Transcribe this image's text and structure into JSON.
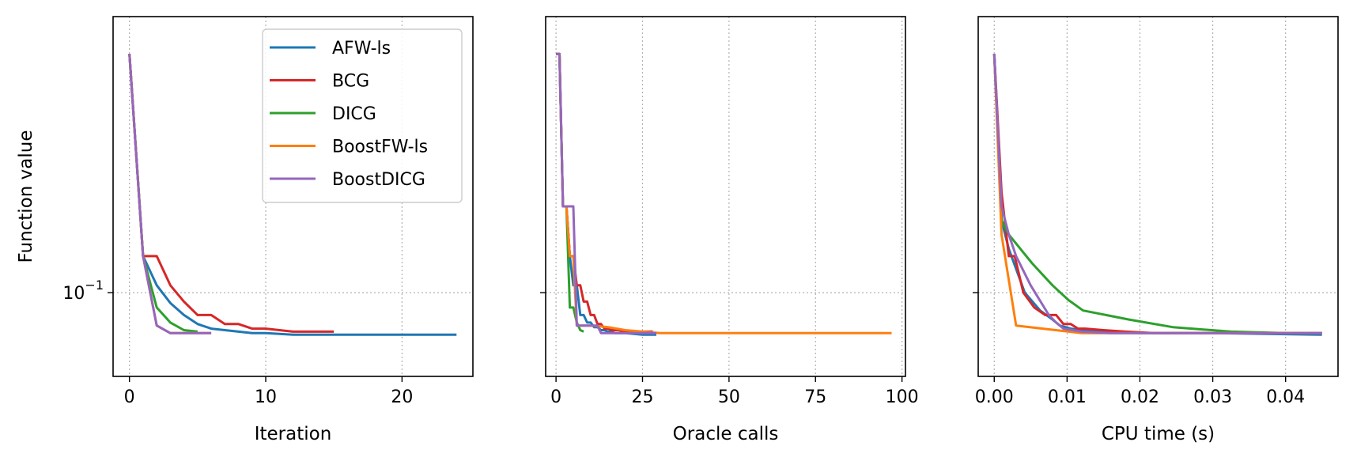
{
  "chart_data": [
    {
      "type": "line",
      "xlabel": "Iteration",
      "ylabel": "Function value",
      "y_scale": "log",
      "xlim": [
        -1.2,
        25.2
      ],
      "ylim": [
        0.0945,
        0.1205
      ],
      "xticks": [
        0,
        10,
        20
      ],
      "xtick_labels": [
        "0",
        "10",
        "20"
      ],
      "yticks": [
        0.1
      ],
      "ytick_labels": [
        "10",
        "−1"
      ],
      "grid": true,
      "legend": "top-right",
      "series": [
        {
          "name": "AFW-ls",
          "color": "#1f77b4",
          "x": [
            0,
            1,
            2,
            3,
            4,
            5,
            6,
            7,
            8,
            9,
            10,
            12,
            15,
            24
          ],
          "y": [
            0.1175,
            0.1025,
            0.1005,
            0.0993,
            0.0985,
            0.0979,
            0.0976,
            0.0975,
            0.0974,
            0.0973,
            0.0973,
            0.0972,
            0.0972,
            0.0972
          ]
        },
        {
          "name": "BCG",
          "color": "#d62728",
          "x": [
            0,
            1,
            2,
            3,
            4,
            5,
            6,
            7,
            8,
            9,
            10,
            11,
            12,
            15
          ],
          "y": [
            0.1175,
            0.1025,
            0.1025,
            0.1005,
            0.0994,
            0.0985,
            0.0985,
            0.0979,
            0.0979,
            0.0976,
            0.0976,
            0.0975,
            0.0974,
            0.0974
          ]
        },
        {
          "name": "DICG",
          "color": "#2ca02c",
          "x": [
            0,
            1,
            2,
            3,
            4,
            5
          ],
          "y": [
            0.1175,
            0.1025,
            0.099,
            0.098,
            0.0975,
            0.0974
          ]
        },
        {
          "name": "BoostFW-ls",
          "color": "#ff7f0e",
          "x": [
            0,
            1,
            2,
            3,
            4,
            5,
            6
          ],
          "y": [
            0.1175,
            0.1025,
            0.0978,
            0.0973,
            0.0973,
            0.0973,
            0.0973
          ]
        },
        {
          "name": "BoostDICG",
          "color": "#9467bd",
          "x": [
            0,
            1,
            2,
            3,
            4,
            5,
            6
          ],
          "y": [
            0.1175,
            0.1025,
            0.0978,
            0.0973,
            0.0973,
            0.0973,
            0.0973
          ]
        }
      ]
    },
    {
      "type": "line",
      "xlabel": "Oracle calls",
      "y_scale": "log",
      "xlim": [
        -3,
        101
      ],
      "ylim": [
        0.0945,
        0.1205
      ],
      "xticks": [
        0,
        25,
        50,
        75,
        100
      ],
      "xtick_labels": [
        "0",
        "25",
        "50",
        "75",
        "100"
      ],
      "grid": true,
      "series": [
        {
          "name": "AFW-ls",
          "color": "#1f77b4",
          "x": [
            0,
            1,
            2,
            3,
            4,
            5,
            6,
            7,
            8,
            9,
            10,
            11,
            12,
            13,
            14,
            15,
            16,
            17,
            20,
            25,
            29
          ],
          "y": [
            0.1175,
            0.1175,
            0.106,
            0.106,
            0.1025,
            0.1005,
            0.1005,
            0.0985,
            0.0985,
            0.098,
            0.098,
            0.0977,
            0.0977,
            0.0975,
            0.0975,
            0.0974,
            0.0974,
            0.0973,
            0.0973,
            0.0972,
            0.0972
          ]
        },
        {
          "name": "BCG",
          "color": "#d62728",
          "x": [
            0,
            1,
            2,
            3,
            4,
            5,
            6,
            7,
            8,
            9,
            10,
            11,
            12,
            13,
            14,
            15,
            16,
            18,
            20,
            24,
            28
          ],
          "y": [
            0.1175,
            0.1175,
            0.106,
            0.106,
            0.1025,
            0.1025,
            0.1005,
            0.1005,
            0.0994,
            0.0994,
            0.0985,
            0.0985,
            0.0979,
            0.0979,
            0.0976,
            0.0976,
            0.0975,
            0.0975,
            0.0974,
            0.0974,
            0.0974
          ]
        },
        {
          "name": "DICG",
          "color": "#2ca02c",
          "x": [
            0,
            1,
            2,
            3,
            4,
            5,
            6,
            7,
            8
          ],
          "y": [
            0.1175,
            0.1175,
            0.106,
            0.106,
            0.099,
            0.099,
            0.098,
            0.0975,
            0.0974
          ]
        },
        {
          "name": "BoostFW-ls",
          "color": "#ff7f0e",
          "x": [
            0,
            1,
            2,
            3,
            4,
            5,
            6,
            10,
            15,
            20,
            30,
            50,
            70,
            97
          ],
          "y": [
            0.1175,
            0.1175,
            0.106,
            0.106,
            0.1025,
            0.1025,
            0.0978,
            0.0978,
            0.0977,
            0.0975,
            0.0973,
            0.0973,
            0.0973,
            0.0973
          ]
        },
        {
          "name": "BoostDICG",
          "color": "#9467bd",
          "x": [
            0,
            1,
            2,
            3,
            4,
            5,
            6,
            7,
            8,
            9,
            10,
            11,
            12,
            13,
            14,
            15,
            16,
            18,
            20,
            25,
            29
          ],
          "y": [
            0.1175,
            0.1175,
            0.106,
            0.106,
            0.106,
            0.106,
            0.0978,
            0.0978,
            0.0978,
            0.0978,
            0.0978,
            0.0978,
            0.0978,
            0.0973,
            0.0973,
            0.0973,
            0.0973,
            0.0973,
            0.0973,
            0.0973,
            0.0973
          ]
        }
      ]
    },
    {
      "type": "line",
      "xlabel": "CPU time (s)",
      "y_scale": "log",
      "xlim": [
        -0.0022,
        0.0472
      ],
      "ylim": [
        0.0945,
        0.1205
      ],
      "xticks": [
        0,
        0.01,
        0.02,
        0.03,
        0.04
      ],
      "xtick_labels": [
        "0.00",
        "0.01",
        "0.02",
        "0.03",
        "0.04"
      ],
      "grid": true,
      "series": [
        {
          "name": "AFW-ls",
          "color": "#1f77b4",
          "x": [
            0,
            0.001,
            0.002,
            0.0042,
            0.0063,
            0.008,
            0.009,
            0.0105,
            0.012,
            0.015,
            0.02,
            0.03,
            0.045
          ],
          "y": [
            0.1175,
            0.105,
            0.103,
            0.1,
            0.0988,
            0.0982,
            0.0978,
            0.0976,
            0.0975,
            0.0974,
            0.0973,
            0.0973,
            0.0972
          ]
        },
        {
          "name": "BCG",
          "color": "#d62728",
          "x": [
            0,
            0.001,
            0.002,
            0.0028,
            0.004,
            0.0055,
            0.007,
            0.0085,
            0.0095,
            0.0105,
            0.0115,
            0.0125,
            0.015,
            0.018,
            0.022,
            0.03,
            0.04,
            0.045
          ],
          "y": [
            0.1175,
            0.107,
            0.1025,
            0.1025,
            0.1,
            0.099,
            0.0985,
            0.0985,
            0.0979,
            0.0979,
            0.0976,
            0.0976,
            0.0975,
            0.0974,
            0.0973,
            0.0973,
            0.0973,
            0.0973
          ]
        },
        {
          "name": "DICG",
          "color": "#2ca02c",
          "x": [
            0,
            0.001,
            0.002,
            0.0052,
            0.008,
            0.0102,
            0.0122,
            0.0185,
            0.0245,
            0.0325,
            0.04,
            0.045
          ],
          "y": [
            0.1175,
            0.105,
            0.104,
            0.102,
            0.1005,
            0.0995,
            0.0988,
            0.0982,
            0.0977,
            0.0974,
            0.0973,
            0.0973
          ]
        },
        {
          "name": "BoostFW-ls",
          "color": "#ff7f0e",
          "x": [
            0,
            0.001,
            0.003,
            0.012,
            0.02,
            0.03,
            0.045
          ],
          "y": [
            0.1175,
            0.104,
            0.0978,
            0.0973,
            0.0973,
            0.0973,
            0.0973
          ]
        },
        {
          "name": "BoostDICG",
          "color": "#9467bd",
          "x": [
            0,
            0.001,
            0.002,
            0.003,
            0.005,
            0.0075,
            0.0085,
            0.0095,
            0.012,
            0.016,
            0.02,
            0.03,
            0.045
          ],
          "y": [
            0.1175,
            0.106,
            0.104,
            0.1025,
            0.1005,
            0.0985,
            0.098,
            0.0976,
            0.0974,
            0.0973,
            0.0973,
            0.0973,
            0.0973
          ]
        }
      ]
    }
  ]
}
